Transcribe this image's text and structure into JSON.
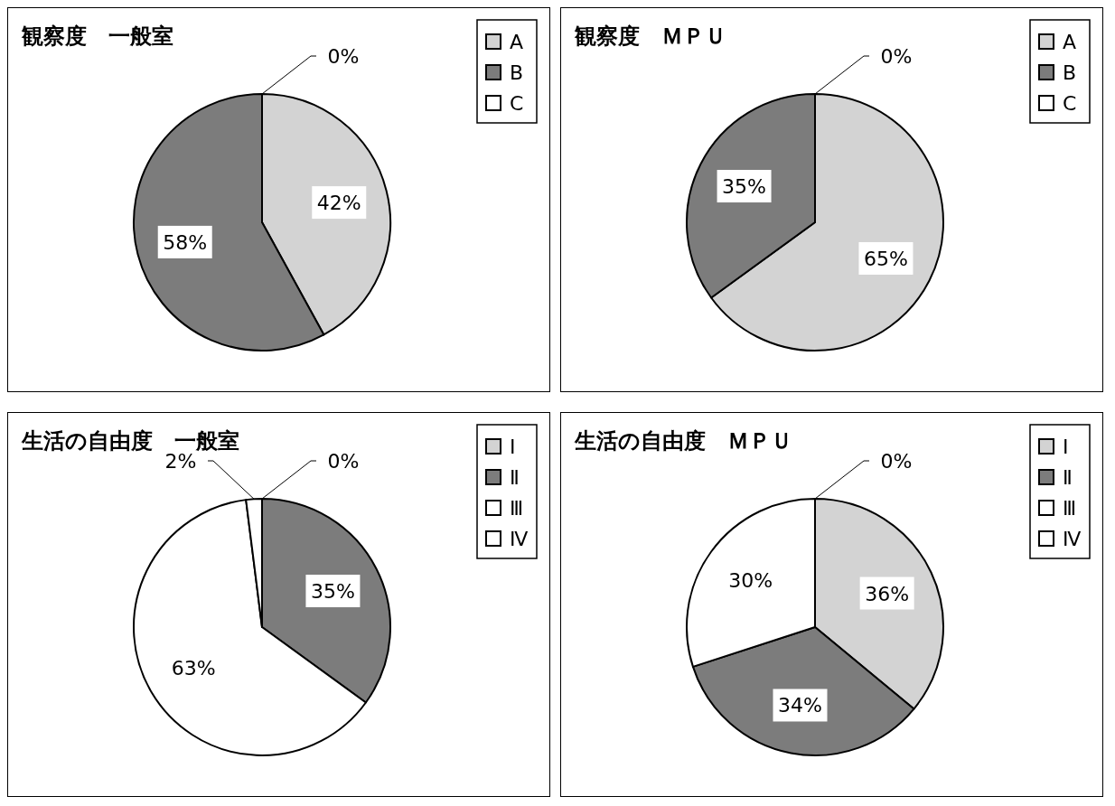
{
  "chart_data": [
    {
      "type": "pie",
      "title": "観察度　一般室",
      "categories": [
        "A",
        "B",
        "C"
      ],
      "values": [
        42,
        58,
        0
      ],
      "colors": [
        "#d3d3d3",
        "#7c7c7c",
        "#ffffff"
      ],
      "value_labels": [
        "42%",
        "58%",
        "0%"
      ],
      "legend": "top right"
    },
    {
      "type": "pie",
      "title": "観察度　ＭＰＵ",
      "categories": [
        "A",
        "B",
        "C"
      ],
      "values": [
        65,
        35,
        0
      ],
      "colors": [
        "#d3d3d3",
        "#7c7c7c",
        "#ffffff"
      ],
      "value_labels": [
        "65%",
        "35%",
        "0%"
      ],
      "legend": "top right"
    },
    {
      "type": "pie",
      "title": "生活の自由度　一般室",
      "categories": [
        "Ⅰ",
        "Ⅱ",
        "Ⅲ",
        "Ⅳ"
      ],
      "values": [
        0,
        35,
        63,
        2
      ],
      "colors": [
        "#d3d3d3",
        "#7c7c7c",
        "#ffffff",
        "#ffffff"
      ],
      "value_labels": [
        "0%",
        "35%",
        "63%",
        "2%"
      ],
      "legend": "top right"
    },
    {
      "type": "pie",
      "title": "生活の自由度　ＭＰＵ",
      "categories": [
        "Ⅰ",
        "Ⅱ",
        "Ⅲ",
        "Ⅳ"
      ],
      "values": [
        36,
        34,
        30,
        0
      ],
      "colors": [
        "#d3d3d3",
        "#7c7c7c",
        "#ffffff",
        "#ffffff"
      ],
      "value_labels": [
        "36%",
        "34%",
        "30%",
        "0%"
      ],
      "legend": "top right"
    }
  ]
}
